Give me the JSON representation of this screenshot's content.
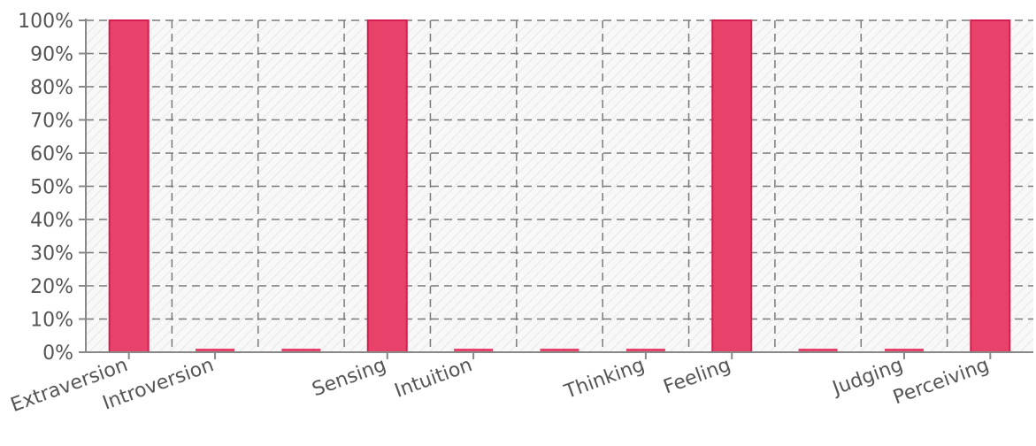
{
  "chart_data": {
    "type": "bar",
    "categories": [
      "Extraversion",
      "Introversion",
      "",
      "Sensing",
      "Intuition",
      "",
      "Thinking",
      "Feeling",
      "",
      "Judging",
      "Perceiving"
    ],
    "values": [
      100,
      0,
      0,
      100,
      0,
      0,
      0,
      100,
      0,
      0,
      100
    ],
    "title": "",
    "xlabel": "",
    "ylabel": "",
    "ylim": [
      0,
      100
    ],
    "y_ticks": [
      "0%",
      "10%",
      "20%",
      "30%",
      "40%",
      "50%",
      "60%",
      "70%",
      "80%",
      "90%",
      "100%"
    ],
    "grid": true,
    "grid_style": "dashed",
    "legend": "none",
    "colors": {
      "bar_fill": "#e8426b",
      "bar_stroke": "#d41e50",
      "grid": "#7a7a7a",
      "axis": "#888888",
      "plot_background": "#f8f8f8",
      "hatch": "#e6e6e6"
    }
  }
}
